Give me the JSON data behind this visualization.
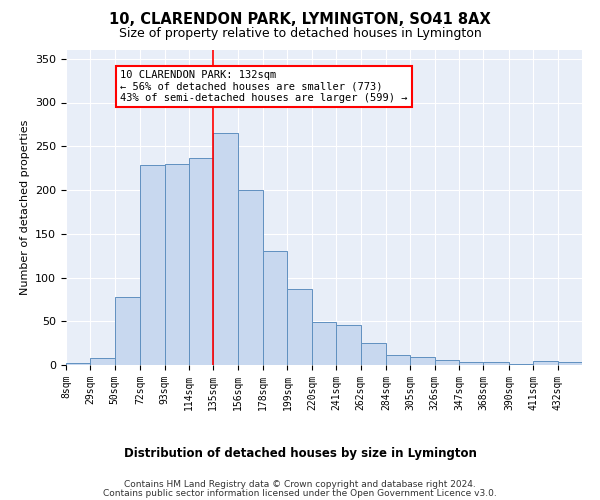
{
  "title": "10, CLARENDON PARK, LYMINGTON, SO41 8AX",
  "subtitle": "Size of property relative to detached houses in Lymington",
  "xlabel": "Distribution of detached houses by size in Lymington",
  "ylabel": "Number of detached properties",
  "bar_color": "#c8d8ef",
  "bar_edge_color": "#6090c0",
  "background_color": "#ffffff",
  "plot_bg_color": "#e8eef8",
  "grid_color": "#ffffff",
  "vline_x": 135,
  "vline_color": "red",
  "annotation_text": "10 CLARENDON PARK: 132sqm\n← 56% of detached houses are smaller (773)\n43% of semi-detached houses are larger (599) →",
  "annotation_box_color": "white",
  "annotation_box_edge": "red",
  "bins": [
    8,
    29,
    50,
    72,
    93,
    114,
    135,
    156,
    178,
    199,
    220,
    241,
    262,
    284,
    305,
    326,
    347,
    368,
    390,
    411,
    432,
    453
  ],
  "counts": [
    2,
    8,
    78,
    229,
    230,
    237,
    265,
    200,
    130,
    87,
    49,
    46,
    25,
    11,
    9,
    6,
    4,
    4,
    1,
    5,
    3
  ],
  "ylim": [
    0,
    360
  ],
  "yticks": [
    0,
    50,
    100,
    150,
    200,
    250,
    300,
    350
  ],
  "footer_line1": "Contains HM Land Registry data © Crown copyright and database right 2024.",
  "footer_line2": "Contains public sector information licensed under the Open Government Licence v3.0."
}
